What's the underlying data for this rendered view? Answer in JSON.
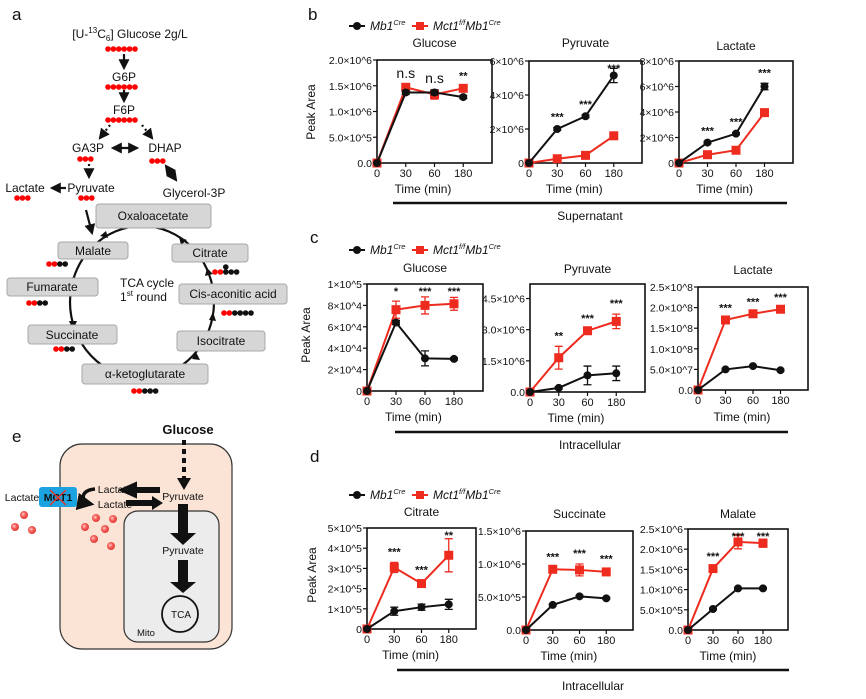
{
  "panel_labels": {
    "a": "a",
    "b": "b",
    "c": "c",
    "d": "d",
    "e": "e"
  },
  "colors": {
    "control": "#111111",
    "knockout": "#ee2b1f",
    "carbon_labeled": "#ff0000",
    "carbon_unlabeled": "#111111",
    "cell": "#fbe4d6",
    "mito": "#ececec",
    "mct1": "#1aa3e0",
    "metabolite_box": "#d6d6d6"
  },
  "legend": {
    "control": "Mb1",
    "control_sup": "Cre",
    "knockout_a": "Mct1",
    "knockout_sup_a": "f/f",
    "knockout_b": "Mb1",
    "knockout_sup_b": "Cre"
  },
  "group_labels": {
    "b": "Supernatant",
    "c": "Intracellular",
    "d": "Intracellular"
  },
  "diagram_a": {
    "tracer_prefix": "[U-",
    "tracer_sup": "13",
    "tracer_c": "C",
    "tracer_sub": "6",
    "tracer_suffix": "] Glucose  2g/L",
    "g6p": "G6P",
    "f6p": "F6P",
    "ga3p": "GA3P",
    "dhap": "DHAP",
    "pyruvate": "Pyruvate",
    "lactate": "Lactate",
    "glycerol3p": "Glycerol-3P",
    "oxaloacetate": "Oxaloacetate",
    "citrate": "Citrate",
    "cis_aconitic": "Cis-aconitic acid",
    "isocitrate": "Isocitrate",
    "akg": "α-ketoglutarate",
    "succinate": "Succinate",
    "fumarate": "Fumarate",
    "malate": "Malate",
    "tca_line1": "TCA cycle",
    "tca_line2_pre": "1",
    "tca_line2_sup": "st",
    "tca_line2_post": " round",
    "carbons": {
      "glucose": "rrrrrr",
      "g6p": "rrrrrr",
      "f6p": "rrrrrr",
      "ga3p": "rrr",
      "dhap": "rrr",
      "pyruvate": "rrr",
      "lactate": "rrr",
      "malate": "rrbb",
      "citrate": "rrbbbb",
      "cis_aconitic": "rrbbbb",
      "fumarate": "rrbb",
      "succinate": "rrbb",
      "akg": "rrbbb"
    }
  },
  "diagram_e": {
    "glucose": "Glucose",
    "pyruvate_cyto": "Pyruvate",
    "lactate_in_1": "Lactate",
    "lactate_in_2": "Lactate",
    "lactate_out": "Lactate",
    "mct1": "MCT1",
    "pyruvate_mito": "Pyruvate",
    "tca": "TCA",
    "mito": "Mito"
  },
  "chart_data": [
    {
      "type": "line",
      "panel": "b",
      "title": "Glucose",
      "xlabel": "Time (min)",
      "ylabel": "Peak Area",
      "categories": [
        "0",
        "30",
        "60",
        "180"
      ],
      "ylim": [
        0,
        2000000
      ],
      "yticks": [
        0,
        500000,
        1000000,
        1500000,
        2000000
      ],
      "ytick_labels": [
        "0.0",
        "5.0×10^5",
        "1.0×10^6",
        "1.5×10^6",
        "2.0×10^6"
      ],
      "series": [
        {
          "name": "Mb1Cre",
          "values": [
            0,
            1370000,
            1370000,
            1280000
          ],
          "errors": [
            0,
            40000,
            50000,
            30000
          ]
        },
        {
          "name": "Mct1f/fMb1Cre",
          "values": [
            0,
            1470000,
            1330000,
            1450000
          ],
          "errors": [
            0,
            40000,
            90000,
            40000
          ]
        }
      ],
      "annotations": [
        "",
        "n.s",
        "n.s",
        "**"
      ]
    },
    {
      "type": "line",
      "panel": "b",
      "title": "Pyruvate",
      "xlabel": "Time (min)",
      "ylabel": "",
      "categories": [
        "0",
        "30",
        "60",
        "180"
      ],
      "ylim": [
        0,
        6000000
      ],
      "yticks": [
        0,
        2000000,
        4000000,
        6000000
      ],
      "ytick_labels": [
        "0",
        "2×10^6",
        "4×10^6",
        "6×10^6"
      ],
      "series": [
        {
          "name": "Mb1Cre",
          "values": [
            0,
            2000000,
            2750000,
            5150000
          ],
          "errors": [
            0,
            80000,
            80000,
            420000
          ]
        },
        {
          "name": "Mct1f/fMb1Cre",
          "values": [
            0,
            250000,
            450000,
            1600000
          ],
          "errors": [
            0,
            50000,
            50000,
            80000
          ]
        }
      ],
      "annotations": [
        "",
        "***",
        "***",
        "***"
      ]
    },
    {
      "type": "line",
      "panel": "b",
      "title": "Lactate",
      "xlabel": "Time (min)",
      "ylabel": "",
      "categories": [
        "0",
        "30",
        "60",
        "180"
      ],
      "ylim": [
        0,
        8000000
      ],
      "yticks": [
        0,
        2000000,
        4000000,
        6000000,
        8000000
      ],
      "ytick_labels": [
        "0",
        "2×10^6",
        "4×10^6",
        "6×10^6",
        "8×10^6"
      ],
      "series": [
        {
          "name": "Mb1Cre",
          "values": [
            0,
            1600000,
            2300000,
            6000000
          ],
          "errors": [
            0,
            80000,
            80000,
            250000
          ]
        },
        {
          "name": "Mct1f/fMb1Cre",
          "values": [
            0,
            650000,
            1000000,
            3950000
          ],
          "errors": [
            0,
            60000,
            60000,
            120000
          ]
        }
      ],
      "annotations": [
        "",
        "***",
        "***",
        "***"
      ]
    },
    {
      "type": "line",
      "panel": "c",
      "title": "Glucose",
      "xlabel": "Time (min)",
      "ylabel": "Peak Area",
      "categories": [
        "0",
        "30",
        "60",
        "180"
      ],
      "ylim": [
        0,
        100000
      ],
      "yticks": [
        0,
        20000,
        40000,
        60000,
        80000,
        100000
      ],
      "ytick_labels": [
        "0",
        "2×10^4",
        "4×10^4",
        "6×10^4",
        "8×10^4",
        "1×10^5"
      ],
      "series": [
        {
          "name": "Mb1Cre",
          "values": [
            0,
            64000,
            30500,
            30000
          ],
          "errors": [
            0,
            2000,
            7000,
            1000
          ]
        },
        {
          "name": "Mct1f/fMb1Cre",
          "values": [
            0,
            76000,
            80000,
            81500
          ],
          "errors": [
            0,
            8000,
            8000,
            6000
          ]
        }
      ],
      "annotations": [
        "",
        "*",
        "***",
        "***"
      ]
    },
    {
      "type": "line",
      "panel": "c",
      "title": "Pyruvate",
      "xlabel": "Time (min)",
      "ylabel": "",
      "categories": [
        "0",
        "30",
        "60",
        "180"
      ],
      "ylim": [
        0,
        5200000
      ],
      "yticks": [
        0,
        1500000,
        3000000,
        4500000
      ],
      "ytick_labels": [
        "0.0",
        "1.5×10^6",
        "3.0×10^6",
        "4.5×10^6"
      ],
      "series": [
        {
          "name": "Mb1Cre",
          "values": [
            0,
            200000,
            800000,
            900000
          ],
          "errors": [
            0,
            60000,
            450000,
            350000
          ]
        },
        {
          "name": "Mct1f/fMb1Cre",
          "values": [
            0,
            1650000,
            2950000,
            3400000
          ],
          "errors": [
            0,
            550000,
            80000,
            350000
          ]
        }
      ],
      "annotations": [
        "",
        "**",
        "***",
        "***"
      ]
    },
    {
      "type": "line",
      "panel": "c",
      "title": "Lactate",
      "xlabel": "Time (min)",
      "ylabel": "",
      "categories": [
        "0",
        "30",
        "60",
        "180"
      ],
      "ylim": [
        0,
        250000000
      ],
      "yticks": [
        0,
        50000000,
        100000000,
        150000000,
        200000000,
        250000000
      ],
      "ytick_labels": [
        "0.0",
        "5.0×10^7",
        "1.0×10^8",
        "1.5×10^8",
        "2.0×10^8",
        "2.5×10^8"
      ],
      "series": [
        {
          "name": "Mb1Cre",
          "values": [
            0,
            50000000,
            58000000,
            48000000
          ],
          "errors": [
            0,
            2000000,
            2000000,
            2000000
          ]
        },
        {
          "name": "Mct1f/fMb1Cre",
          "values": [
            0,
            170000000,
            185000000,
            196000000
          ],
          "errors": [
            0,
            3000000,
            3000000,
            3000000
          ]
        }
      ],
      "annotations": [
        "",
        "***",
        "***",
        "***"
      ]
    },
    {
      "type": "line",
      "panel": "d",
      "title": "Citrate",
      "xlabel": "Time (min)",
      "ylabel": "Peak Area",
      "categories": [
        "0",
        "30",
        "60",
        "180"
      ],
      "ylim": [
        0,
        500000
      ],
      "yticks": [
        0,
        100000,
        200000,
        300000,
        400000,
        500000
      ],
      "ytick_labels": [
        "0",
        "1×10^5",
        "2×10^5",
        "3×10^5",
        "4×10^5",
        "5×10^5"
      ],
      "series": [
        {
          "name": "Mb1Cre",
          "values": [
            0,
            88000,
            108000,
            122000
          ],
          "errors": [
            0,
            20000,
            15000,
            25000
          ]
        },
        {
          "name": "Mct1f/fMb1Cre",
          "values": [
            0,
            305000,
            225000,
            365000
          ],
          "errors": [
            0,
            25000,
            15000,
            82000
          ]
        }
      ],
      "annotations": [
        "",
        "***",
        "***",
        "**"
      ]
    },
    {
      "type": "line",
      "panel": "d",
      "title": "Succinate",
      "xlabel": "Time (min)",
      "ylabel": "",
      "categories": [
        "0",
        "30",
        "60",
        "180"
      ],
      "ylim": [
        0,
        1500000
      ],
      "yticks": [
        0,
        500000,
        1000000,
        1500000
      ],
      "ytick_labels": [
        "0.0",
        "5.0×10^5",
        "1.0×10^6",
        "1.5×10^6"
      ],
      "series": [
        {
          "name": "Mb1Cre",
          "values": [
            0,
            380000,
            510000,
            480000
          ],
          "errors": [
            0,
            15000,
            15000,
            15000
          ]
        },
        {
          "name": "Mct1f/fMb1Cre",
          "values": [
            0,
            920000,
            910000,
            880000
          ],
          "errors": [
            0,
            30000,
            90000,
            40000
          ]
        }
      ],
      "annotations": [
        "",
        "***",
        "***",
        "***"
      ]
    },
    {
      "type": "line",
      "panel": "d",
      "title": "Malate",
      "xlabel": "Time (min)",
      "ylabel": "",
      "categories": [
        "0",
        "30",
        "60",
        "180"
      ],
      "ylim": [
        0,
        2500000
      ],
      "yticks": [
        0,
        500000,
        1000000,
        1500000,
        2000000,
        2500000
      ],
      "ytick_labels": [
        "0.0",
        "5.0×10^5",
        "1.0×10^6",
        "1.5×10^6",
        "2.0×10^6",
        "2.5×10^6"
      ],
      "series": [
        {
          "name": "Mb1Cre",
          "values": [
            0,
            520000,
            1030000,
            1030000
          ],
          "errors": [
            0,
            20000,
            20000,
            20000
          ]
        },
        {
          "name": "Mct1f/fMb1Cre",
          "values": [
            0,
            1520000,
            2180000,
            2150000
          ],
          "errors": [
            0,
            40000,
            170000,
            100000
          ]
        }
      ],
      "annotations": [
        "",
        "***",
        "***",
        "***"
      ]
    }
  ]
}
